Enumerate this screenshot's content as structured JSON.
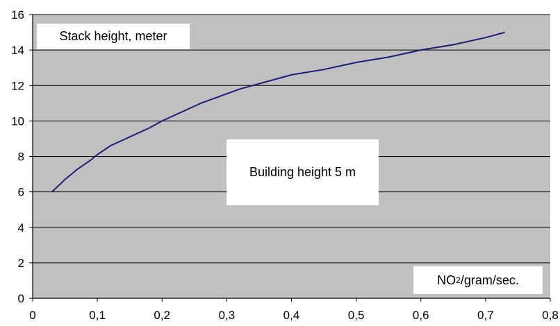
{
  "chart_data": {
    "type": "line",
    "ylabel": "Stack height, meter",
    "xlabel": {
      "prefix": "NO",
      "sub": "2",
      "suffix": "/gram/sec."
    },
    "annotation": "Building height 5 m",
    "xlim": [
      0,
      0.8
    ],
    "ylim": [
      0,
      16
    ],
    "x_ticks": [
      "0",
      "0,1",
      "0,2",
      "0,3",
      "0,4",
      "0,5",
      "0,6",
      "0,7",
      "0,8"
    ],
    "y_ticks": [
      "0",
      "2",
      "4",
      "6",
      "8",
      "10",
      "12",
      "14",
      "16"
    ],
    "grid": "horizontal",
    "colors": {
      "plot_bg": "#c0c0c0",
      "line": "#1c1c7a",
      "grid": "#000000"
    },
    "series": [
      {
        "x": [
          0.03,
          0.05,
          0.07,
          0.09,
          0.1,
          0.12,
          0.15,
          0.18,
          0.2,
          0.23,
          0.26,
          0.29,
          0.32,
          0.35,
          0.38,
          0.4,
          0.45,
          0.5,
          0.55,
          0.6,
          0.65,
          0.7,
          0.73
        ],
        "y": [
          6.0,
          6.7,
          7.3,
          7.8,
          8.1,
          8.6,
          9.1,
          9.6,
          10.0,
          10.5,
          11.0,
          11.4,
          11.8,
          12.1,
          12.4,
          12.6,
          12.9,
          13.3,
          13.6,
          14.0,
          14.3,
          14.7,
          15.0
        ]
      }
    ]
  }
}
